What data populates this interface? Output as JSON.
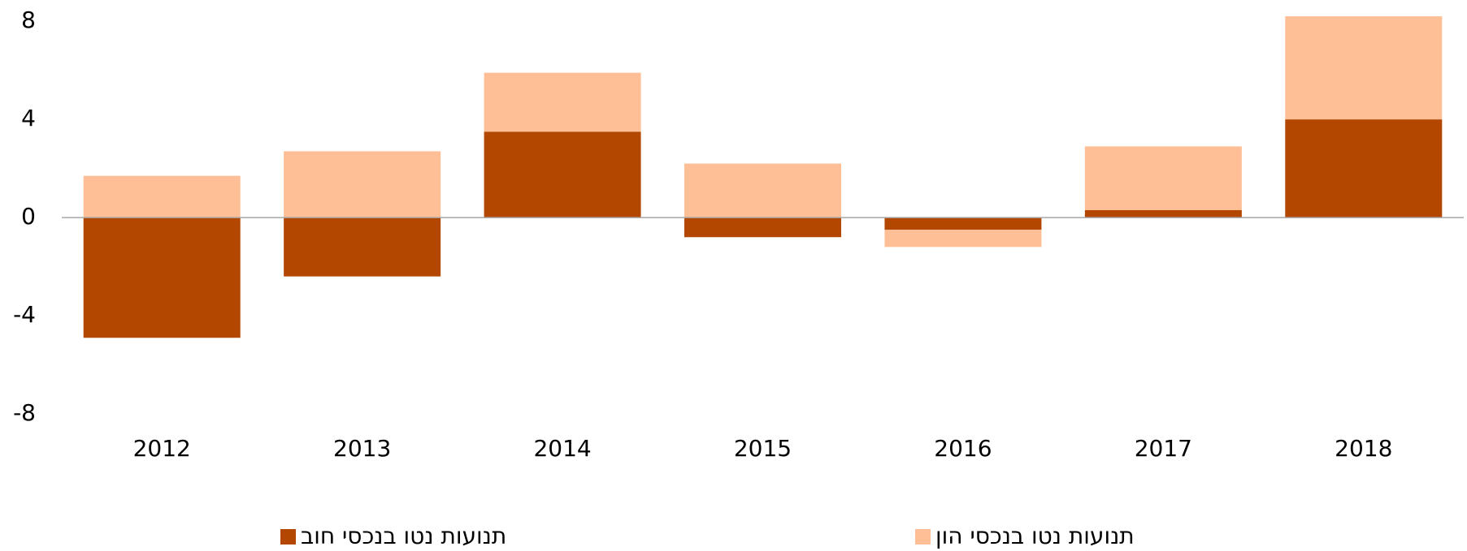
{
  "chart_data": {
    "type": "bar",
    "stacked": true,
    "categories": [
      "2012",
      "2013",
      "2014",
      "2015",
      "2016",
      "2017",
      "2018"
    ],
    "series": [
      {
        "name": "תנועות נטו בנכסי חוב",
        "color": "#b34700",
        "values": [
          -4.9,
          -2.4,
          3.5,
          -0.8,
          -0.5,
          0.3,
          4.0
        ]
      },
      {
        "name": "תנועות נטו בנכסי הון",
        "color": "#ffbf96",
        "values": [
          1.7,
          2.7,
          2.4,
          2.2,
          -0.7,
          2.6,
          4.2
        ]
      }
    ],
    "ylim": [
      -8,
      8.6
    ],
    "yticks": [
      -8,
      -4,
      0,
      4,
      8
    ],
    "grid": false
  }
}
